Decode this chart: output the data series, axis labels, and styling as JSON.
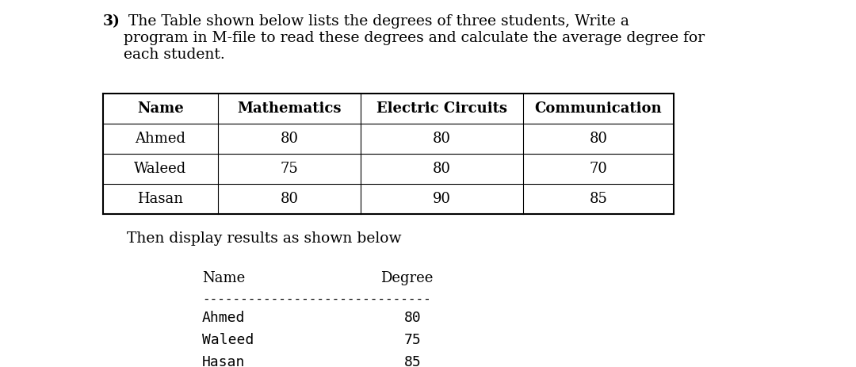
{
  "title_bold": "3)",
  "title_rest": " The Table shown below lists the degrees of three students, Write a\nprogram in M-file to read these degrees and calculate the average degree for\neach student.",
  "table1_headers": [
    "Name",
    "Mathematics",
    "Electric Circuits",
    "Communication"
  ],
  "table1_rows": [
    [
      "Ahmed",
      "80",
      "80",
      "80"
    ],
    [
      "Waleed",
      "75",
      "80",
      "70"
    ],
    [
      "Hasan",
      "80",
      "90",
      "85"
    ]
  ],
  "then_text": "Then display results as shown below",
  "table2_header_name": "Name",
  "table2_header_degree": "Degree",
  "table2_dash": "------------------------------",
  "table2_rows": [
    [
      "Ahmed",
      "80"
    ],
    [
      "Waleed",
      "75"
    ],
    [
      "Hasan",
      "85"
    ]
  ],
  "bg_color": "#ffffff",
  "text_color": "#000000",
  "table_border_color": "#000000",
  "font_size_title": 13.5,
  "font_size_table": 13.0,
  "font_size_result": 13.0,
  "font_size_dash": 11.5
}
